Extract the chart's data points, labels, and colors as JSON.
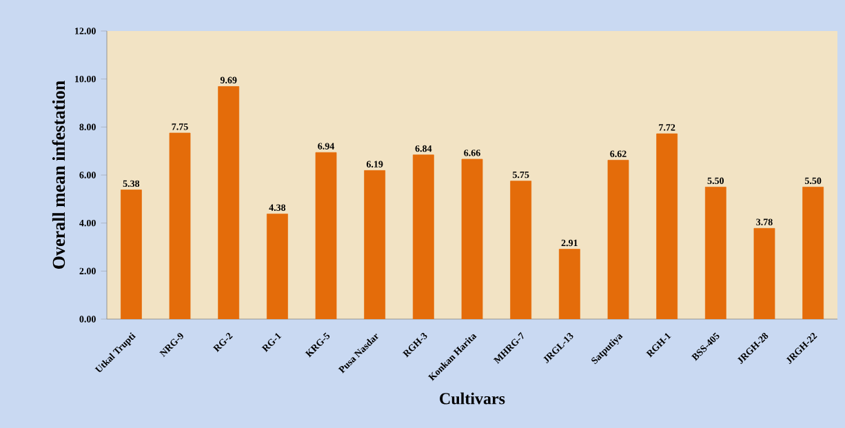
{
  "chart_data": {
    "type": "bar",
    "xlabel": "Cultivars",
    "ylabel": "Overall mean infestation",
    "categories": [
      "Utkal Trupti",
      "NRG-9",
      "RG-2",
      "RG-1",
      "KRG-5",
      "Pusa Nasdar",
      "RGH-3",
      "Konkan Harita",
      "MHRG-7",
      "JRGL-13",
      "Satputiya",
      "RGH-1",
      "BSS-405",
      "JRGH-28",
      "JRGH-22"
    ],
    "values": [
      5.38,
      7.75,
      9.69,
      4.38,
      6.94,
      6.19,
      6.84,
      6.66,
      5.75,
      2.91,
      6.62,
      7.72,
      5.5,
      3.78,
      5.5
    ],
    "value_labels": [
      "5.38",
      "7.75",
      "9.69",
      "4.38",
      "6.94",
      "6.19",
      "6.84",
      "6.66",
      "5.75",
      "2.91",
      "6.62",
      "7.72",
      "5.50",
      "3.78",
      "5.50"
    ],
    "color": "#e46c0a",
    "ylim": [
      0,
      12
    ],
    "yticks": [
      {
        "value": 0,
        "label": "0.00"
      },
      {
        "value": 2,
        "label": "2.00"
      },
      {
        "value": 4,
        "label": "4.00"
      },
      {
        "value": 6,
        "label": "6.00"
      },
      {
        "value": 8,
        "label": "8.00"
      },
      {
        "value": 10,
        "label": "10.00"
      },
      {
        "value": 12,
        "label": "12.00"
      }
    ]
  }
}
